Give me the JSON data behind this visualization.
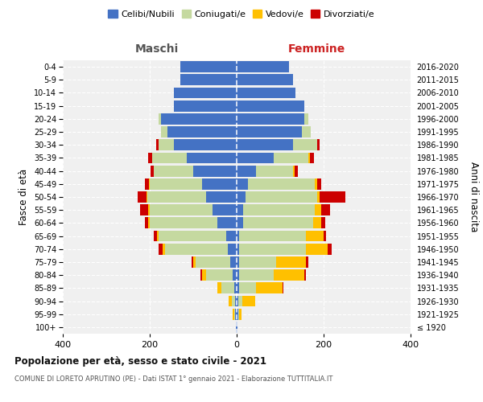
{
  "age_groups": [
    "100+",
    "95-99",
    "90-94",
    "85-89",
    "80-84",
    "75-79",
    "70-74",
    "65-69",
    "60-64",
    "55-59",
    "50-54",
    "45-49",
    "40-44",
    "35-39",
    "30-34",
    "25-29",
    "20-24",
    "15-19",
    "10-14",
    "5-9",
    "0-4"
  ],
  "birth_years": [
    "≤ 1920",
    "1921-1925",
    "1926-1930",
    "1931-1935",
    "1936-1940",
    "1941-1945",
    "1946-1950",
    "1951-1955",
    "1956-1960",
    "1961-1965",
    "1966-1970",
    "1971-1975",
    "1976-1980",
    "1981-1985",
    "1986-1990",
    "1991-1995",
    "1996-2000",
    "2001-2005",
    "2006-2010",
    "2011-2015",
    "2016-2020"
  ],
  "colors": {
    "celibi": "#4472c4",
    "coniugati": "#c5d9a0",
    "vedovi": "#ffc000",
    "divorziati": "#cc0000"
  },
  "maschi": {
    "celibi": [
      2,
      3,
      3,
      5,
      10,
      15,
      20,
      25,
      45,
      55,
      70,
      80,
      100,
      115,
      145,
      160,
      175,
      145,
      145,
      130,
      130
    ],
    "coniugati": [
      0,
      3,
      8,
      30,
      60,
      80,
      145,
      155,
      155,
      145,
      135,
      120,
      90,
      80,
      35,
      15,
      5,
      0,
      0,
      0,
      0
    ],
    "vedovi": [
      0,
      3,
      8,
      10,
      10,
      5,
      5,
      3,
      3,
      3,
      2,
      2,
      0,
      0,
      0,
      0,
      0,
      0,
      0,
      0,
      0
    ],
    "divorziati": [
      0,
      0,
      0,
      0,
      3,
      3,
      10,
      8,
      8,
      20,
      20,
      10,
      8,
      8,
      5,
      0,
      0,
      0,
      0,
      0,
      0
    ]
  },
  "femmine": {
    "celibi": [
      2,
      3,
      3,
      5,
      5,
      5,
      5,
      5,
      15,
      15,
      20,
      25,
      45,
      85,
      130,
      150,
      155,
      155,
      135,
      130,
      120
    ],
    "coniugati": [
      0,
      3,
      10,
      40,
      80,
      85,
      155,
      155,
      160,
      165,
      165,
      155,
      85,
      80,
      55,
      20,
      10,
      0,
      0,
      0,
      0
    ],
    "vedovi": [
      0,
      5,
      30,
      60,
      70,
      70,
      50,
      40,
      20,
      15,
      5,
      5,
      3,
      3,
      0,
      0,
      0,
      0,
      0,
      0,
      0
    ],
    "divorziati": [
      0,
      0,
      0,
      3,
      5,
      5,
      8,
      5,
      8,
      20,
      60,
      10,
      8,
      10,
      5,
      0,
      0,
      0,
      0,
      0,
      0
    ]
  },
  "title": "Popolazione per età, sesso e stato civile - 2021",
  "subtitle": "COMUNE DI LORETO APRUTINO (PE) - Dati ISTAT 1° gennaio 2021 - Elaborazione TUTTITALIA.IT",
  "xlabel_left": "Maschi",
  "xlabel_right": "Femmine",
  "ylabel_left": "Fasce di età",
  "ylabel_right": "Anni di nascita",
  "xlim": 400,
  "legend_labels": [
    "Celibi/Nubili",
    "Coniugati/e",
    "Vedovi/e",
    "Divorziati/e"
  ]
}
